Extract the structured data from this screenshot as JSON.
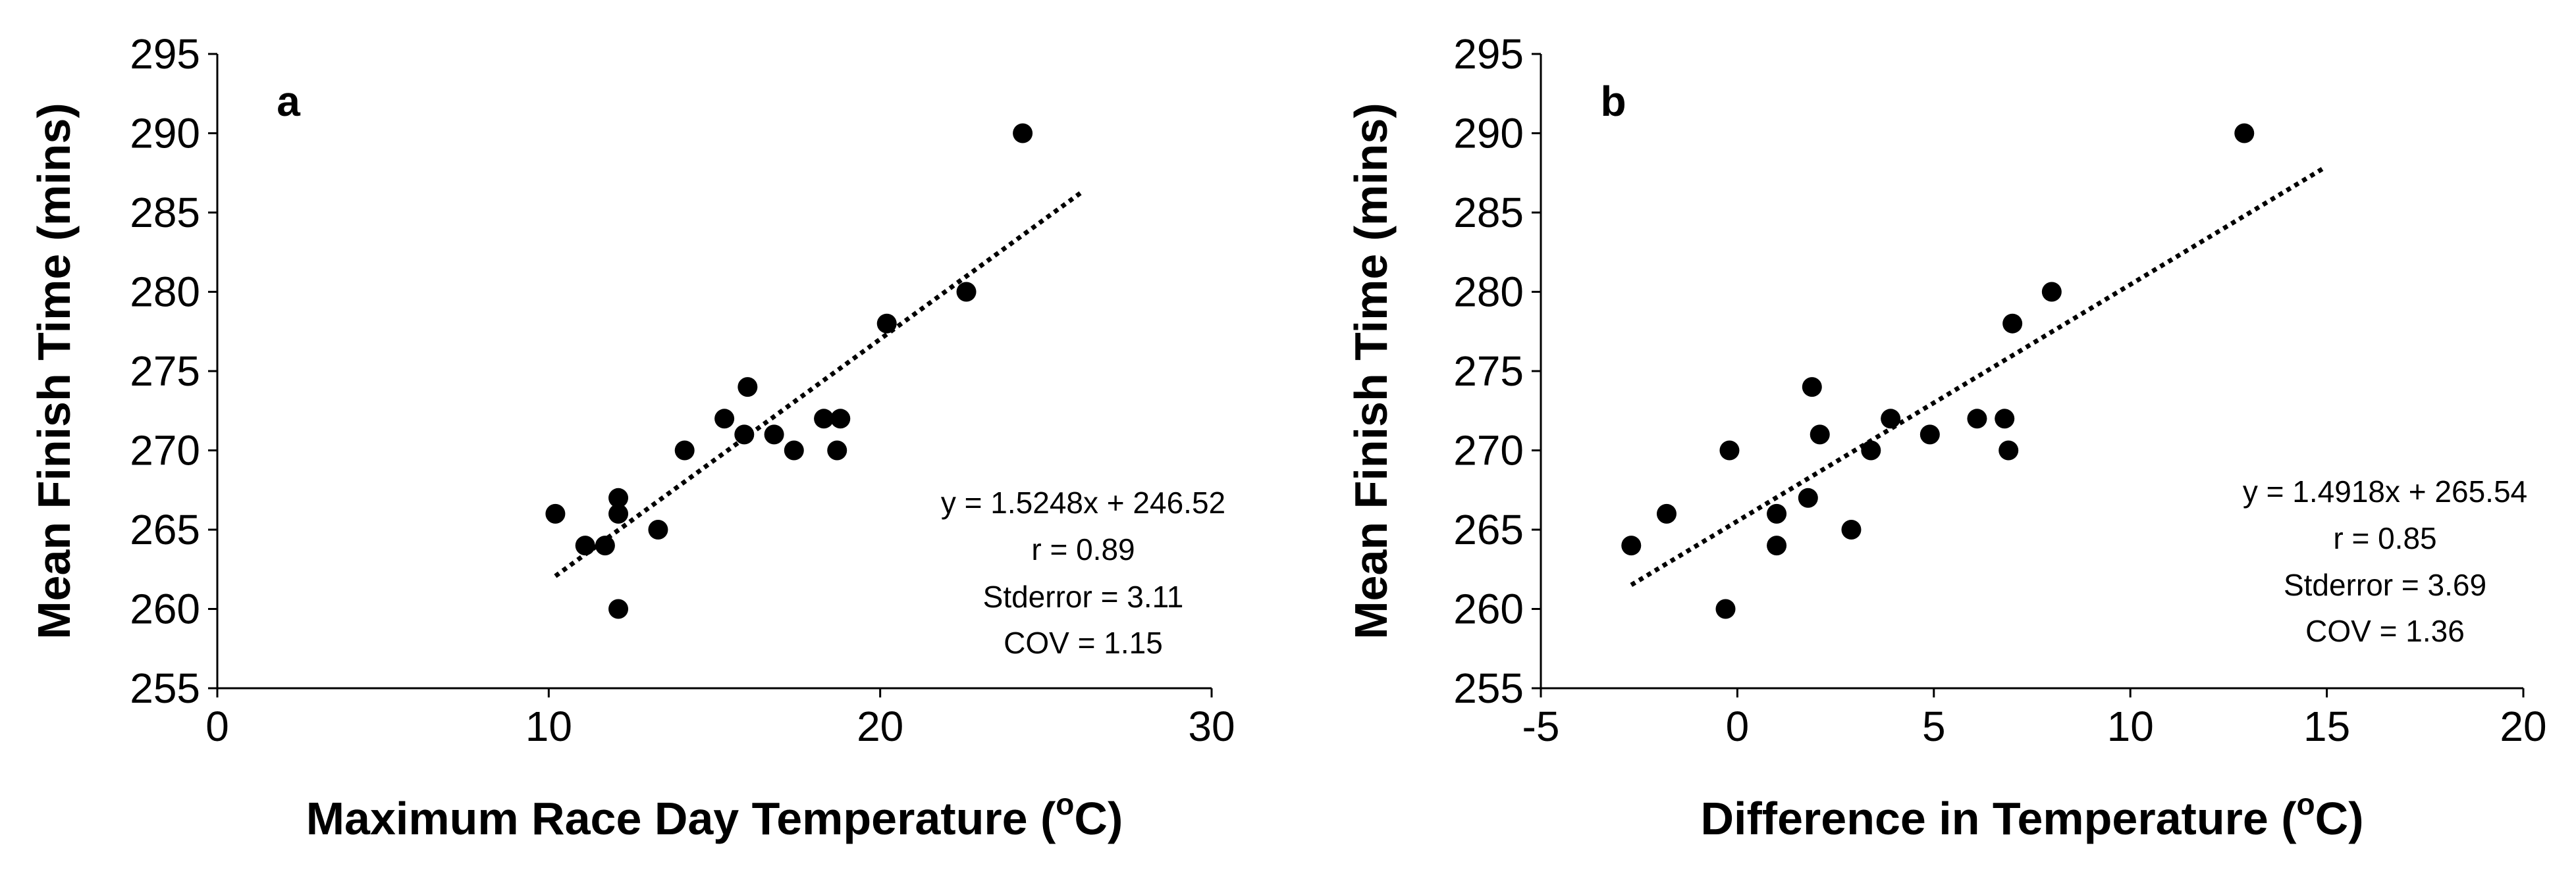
{
  "chart_data": [
    {
      "type": "scatter",
      "panel_label": "a",
      "xlabel": "Maximum Race Day Temperature (",
      "xlabel_sup": "o",
      "xlabel_unit": "C)",
      "ylabel": "Mean Finish Time (mins)",
      "xlim": [
        0,
        30
      ],
      "ylim": [
        255,
        295
      ],
      "x_ticks": [
        "0",
        "10",
        "20",
        "30"
      ],
      "x_tick_values": [
        0,
        10,
        20,
        30
      ],
      "y_ticks": [
        "255",
        "260",
        "265",
        "270",
        "275",
        "280",
        "285",
        "290",
        "295"
      ],
      "y_tick_values": [
        255,
        260,
        265,
        270,
        275,
        280,
        285,
        290,
        295
      ],
      "grid": false,
      "points": [
        {
          "x": 10.2,
          "y": 266
        },
        {
          "x": 11.1,
          "y": 264
        },
        {
          "x": 11.7,
          "y": 264
        },
        {
          "x": 12.1,
          "y": 267
        },
        {
          "x": 12.1,
          "y": 266
        },
        {
          "x": 12.1,
          "y": 260
        },
        {
          "x": 13.3,
          "y": 265
        },
        {
          "x": 14.1,
          "y": 270
        },
        {
          "x": 15.3,
          "y": 272
        },
        {
          "x": 15.9,
          "y": 271
        },
        {
          "x": 16.0,
          "y": 274
        },
        {
          "x": 16.8,
          "y": 271
        },
        {
          "x": 17.4,
          "y": 270
        },
        {
          "x": 18.3,
          "y": 272
        },
        {
          "x": 18.8,
          "y": 272
        },
        {
          "x": 18.7,
          "y": 270
        },
        {
          "x": 20.2,
          "y": 278
        },
        {
          "x": 22.6,
          "y": 280
        },
        {
          "x": 24.3,
          "y": 290
        }
      ],
      "trendline": {
        "slope": 1.5248,
        "intercept": 246.52,
        "x_range": [
          10.2,
          26.1
        ],
        "style": "dotted"
      },
      "annotations": [
        "y = 1.5248x + 246.52",
        "r = 0.89",
        "Stderror = 3.11",
        "COV = 1.15"
      ]
    },
    {
      "type": "scatter",
      "panel_label": "b",
      "xlabel": "Difference in Temperature (",
      "xlabel_sup": "o",
      "xlabel_unit": "C)",
      "ylabel": "Mean Finish Time (mins)",
      "xlim": [
        -5,
        20
      ],
      "ylim": [
        255,
        295
      ],
      "x_ticks": [
        "-5",
        "0",
        "5",
        "10",
        "15",
        "20"
      ],
      "x_tick_values": [
        -5,
        0,
        5,
        10,
        15,
        20
      ],
      "y_ticks": [
        "255",
        "260",
        "265",
        "270",
        "275",
        "280",
        "285",
        "290",
        "295"
      ],
      "y_tick_values": [
        255,
        260,
        265,
        270,
        275,
        280,
        285,
        290,
        295
      ],
      "grid": false,
      "points": [
        {
          "x": -2.7,
          "y": 264
        },
        {
          "x": -1.8,
          "y": 266
        },
        {
          "x": -0.3,
          "y": 260
        },
        {
          "x": -0.2,
          "y": 270
        },
        {
          "x": 1.0,
          "y": 266
        },
        {
          "x": 1.0,
          "y": 264
        },
        {
          "x": 1.8,
          "y": 267
        },
        {
          "x": 1.9,
          "y": 274
        },
        {
          "x": 2.1,
          "y": 271
        },
        {
          "x": 2.9,
          "y": 265
        },
        {
          "x": 3.4,
          "y": 270
        },
        {
          "x": 3.9,
          "y": 272
        },
        {
          "x": 4.9,
          "y": 271
        },
        {
          "x": 6.1,
          "y": 272
        },
        {
          "x": 6.8,
          "y": 272
        },
        {
          "x": 6.9,
          "y": 270
        },
        {
          "x": 7.0,
          "y": 278
        },
        {
          "x": 8.0,
          "y": 280
        },
        {
          "x": 12.9,
          "y": 290
        }
      ],
      "trendline": {
        "slope": 1.4918,
        "intercept": 265.54,
        "x_range": [
          -2.7,
          14.9
        ],
        "style": "dotted"
      },
      "annotations": [
        "y = 1.4918x + 265.54",
        "r = 0.85",
        "Stderror = 3.69",
        "COV = 1.36"
      ]
    }
  ]
}
